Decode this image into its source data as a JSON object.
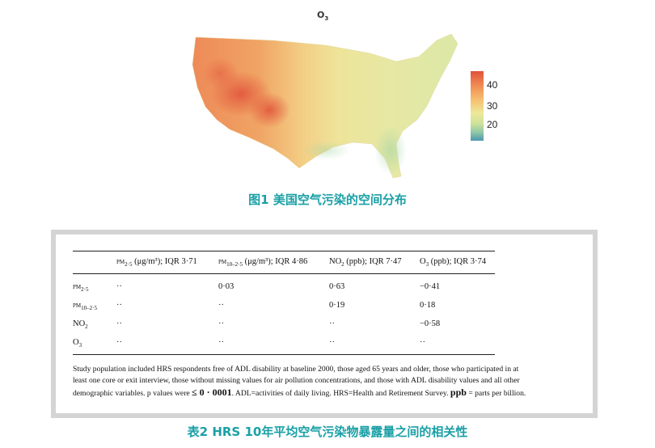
{
  "figure1": {
    "map_title_main": "O",
    "map_title_sub": "3",
    "colorbar_ticks": [
      "40",
      "30",
      "20"
    ],
    "caption": "图1 美国空气污染的空间分布"
  },
  "table2": {
    "headers": [
      {
        "main": "PM",
        "sub": "2·5",
        "rest": " (μg/m³); IQR 3·71"
      },
      {
        "main": "PM",
        "sub": "10–2·5",
        "rest": " (μg/m³); IQR 4·86"
      },
      {
        "main": "NO",
        "sub": "2",
        "rest": " (ppb); IQR 7·47"
      },
      {
        "main": "O",
        "sub": "3",
        "rest": " (ppb); IQR 3·74"
      }
    ],
    "rows": [
      {
        "label_main": "PM",
        "label_sub": "2·5",
        "values": [
          "··",
          "0·03",
          "0·63",
          "−0·41"
        ]
      },
      {
        "label_main": "PM",
        "label_sub": "10–2·5",
        "values": [
          "··",
          "··",
          "0·19",
          "0·18"
        ]
      },
      {
        "label_main": "NO",
        "label_sub": "2",
        "values": [
          "··",
          "··",
          "··",
          "−0·58"
        ]
      },
      {
        "label_main": "O",
        "label_sub": "3",
        "values": [
          "··",
          "··",
          "··",
          "··"
        ]
      }
    ],
    "note_line1": "Study population included HRS respondents free of ADL disability at baseline 2000, those aged 65 years and older, those who participated in at",
    "note_line2": "least one core or exit interview, those without missing values for air pollution concentrations, and those with ADL disability values and all other",
    "note_line3a": "demographic variables. p values were ",
    "note_line3b": "≤ 0 · 0001",
    "note_line3c": ". ADL=activities of daily living. HRS=Health and Retirement Survey. ",
    "note_line3d": "ppb",
    "note_line3e": " = parts per billion.",
    "caption": "表2 HRS 10年平均空气污染物暴露量之间的相关性"
  },
  "colors": {
    "caption": "#1aa0a6",
    "panel_border": "#d4d4d4"
  }
}
